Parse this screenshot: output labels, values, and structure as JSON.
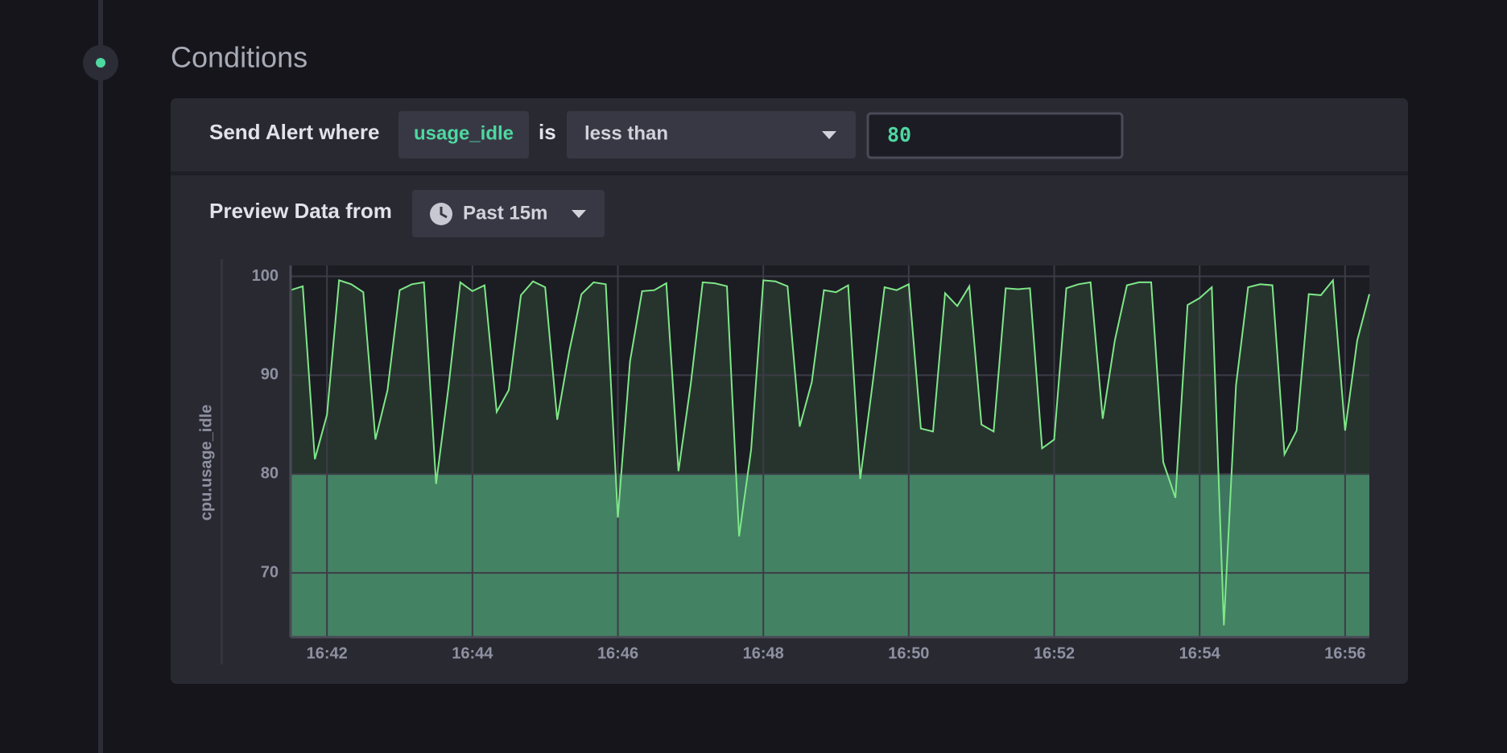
{
  "header": {
    "title": "Conditions"
  },
  "condition": {
    "label": "Send Alert where",
    "field": "usage_idle",
    "connector": "is",
    "operator": "less than",
    "threshold": 80
  },
  "preview": {
    "label": "Preview Data from",
    "range": "Past 15m"
  },
  "chart_data": {
    "type": "line",
    "y_label": "cpu.usage_idle",
    "color": "#7ee787",
    "x": [
      "16:41:30",
      "16:41:40",
      "16:41:50",
      "16:42:00",
      "16:42:10",
      "16:42:20",
      "16:42:30",
      "16:42:40",
      "16:42:50",
      "16:43:00",
      "16:43:10",
      "16:43:20",
      "16:43:30",
      "16:43:40",
      "16:43:50",
      "16:44:00",
      "16:44:10",
      "16:44:20",
      "16:44:30",
      "16:44:40",
      "16:44:50",
      "16:45:00",
      "16:45:10",
      "16:45:20",
      "16:45:30",
      "16:45:40",
      "16:45:50",
      "16:46:00",
      "16:46:10",
      "16:46:20",
      "16:46:30",
      "16:46:40",
      "16:46:50",
      "16:47:00",
      "16:47:10",
      "16:47:20",
      "16:47:30",
      "16:47:40",
      "16:47:50",
      "16:48:00",
      "16:48:10",
      "16:48:20",
      "16:48:30",
      "16:48:40",
      "16:48:50",
      "16:49:00",
      "16:49:10",
      "16:49:20",
      "16:49:30",
      "16:49:40",
      "16:49:50",
      "16:50:00",
      "16:50:10",
      "16:50:20",
      "16:50:30",
      "16:50:40",
      "16:50:50",
      "16:51:00",
      "16:51:10",
      "16:51:20",
      "16:51:30",
      "16:51:40",
      "16:51:50",
      "16:52:00",
      "16:52:10",
      "16:52:20",
      "16:52:30",
      "16:52:40",
      "16:52:50",
      "16:53:00",
      "16:53:10",
      "16:53:20",
      "16:53:30",
      "16:53:40",
      "16:53:50",
      "16:54:00",
      "16:54:10",
      "16:54:20",
      "16:54:30",
      "16:54:40",
      "16:54:50",
      "16:55:00",
      "16:55:10",
      "16:55:20",
      "16:55:30",
      "16:55:40",
      "16:55:50",
      "16:56:00",
      "16:56:10",
      "16:56:20"
    ],
    "values": [
      98.6,
      99.0,
      81.5,
      86,
      99.6,
      99.2,
      98.4,
      83.5,
      88.5,
      98.6,
      99.2,
      99.4,
      79,
      88.5,
      99.4,
      98.5,
      99.1,
      86.3,
      88.5,
      98.1,
      99.5,
      98.9,
      85.5,
      92.5,
      98.2,
      99.4,
      99.2,
      75.6,
      91.4,
      98.5,
      98.6,
      99.3,
      80.3,
      89,
      99.4,
      99.3,
      99,
      73.7,
      82.5,
      99.6,
      99.5,
      99,
      84.8,
      89.3,
      98.6,
      98.4,
      99.1,
      79.5,
      89,
      98.9,
      98.6,
      99.2,
      84.6,
      84.3,
      98.3,
      97,
      99,
      85,
      84.3,
      98.8,
      98.7,
      98.8,
      82.6,
      83.5,
      98.8,
      99.2,
      99.4,
      85.6,
      93.5,
      99.1,
      99.4,
      99.4,
      81.2,
      77.6,
      97.1,
      97.8,
      98.9,
      64.7,
      89,
      98.9,
      99.2,
      99.1,
      82,
      84.4,
      98.2,
      98.1,
      99.6,
      84.4,
      93.5,
      98.2
    ],
    "xlim": [
      "16:41:30",
      "16:56:20"
    ],
    "xticks": [
      "16:42",
      "16:44",
      "16:46",
      "16:48",
      "16:50",
      "16:52",
      "16:54",
      "16:56"
    ],
    "ylim": [
      63.5,
      101.1
    ],
    "yticks": [
      70,
      80,
      90,
      100
    ],
    "grid": true
  }
}
